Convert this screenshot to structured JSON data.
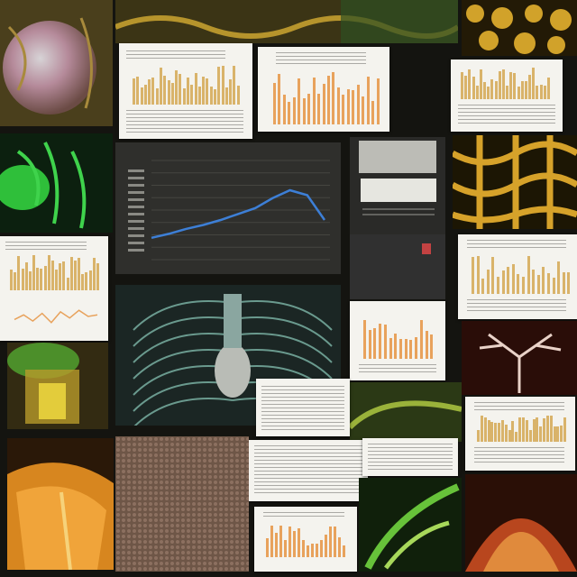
{
  "image": {
    "kind": "photo-collage",
    "palette": {
      "background": "#141410",
      "card": "#f4f3ee",
      "bar": "#d9b36a",
      "bar_alt": "#e8a25c",
      "line_blue": "#3d7fd6",
      "text_gray": "#6f6f6a",
      "dark_panel": "#3a3a38"
    }
  },
  "chart_main": {
    "type": "line",
    "line_color": "#3d7fd6",
    "approx_shape": [
      0.22,
      0.26,
      0.31,
      0.35,
      0.4,
      0.46,
      0.52,
      0.62,
      0.7,
      0.65,
      0.4
    ]
  },
  "chart_wave": {
    "type": "line",
    "approx_shape": [
      0.4,
      0.55,
      0.35,
      0.6,
      0.3,
      0.65,
      0.45,
      0.7,
      0.5,
      0.55
    ]
  }
}
